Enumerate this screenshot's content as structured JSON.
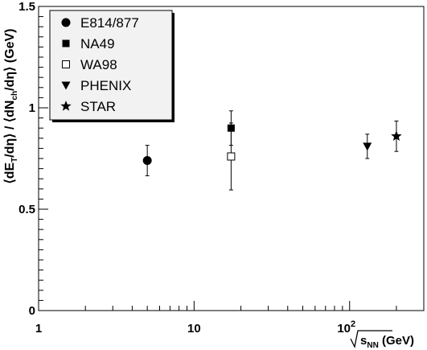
{
  "chart_data": {
    "type": "scatter",
    "title": "",
    "xlabel": "√s_NN (GeV)",
    "ylabel": "⟨dE_T/dη⟩ / ⟨dN_ch/dη⟩ (GeV)",
    "x_scale": "log",
    "xlim": [
      1,
      300
    ],
    "ylim": [
      0,
      1.5
    ],
    "y_ticks": [
      "0",
      "0.5",
      "1",
      "1.5"
    ],
    "x_ticks": [
      {
        "value": 1,
        "label": "1"
      },
      {
        "value": 10,
        "label": "10"
      },
      {
        "value": 100,
        "label": "10",
        "exponent": "2"
      }
    ],
    "grid": false,
    "legend_position": "top-left",
    "series": [
      {
        "name": "E814/877",
        "marker": "filled-circle",
        "points": [
          {
            "x": 5,
            "y": 0.74,
            "yerr": 0.075
          }
        ]
      },
      {
        "name": "NA49",
        "marker": "filled-square",
        "points": [
          {
            "x": 17.3,
            "y": 0.9,
            "yerr": 0.085
          }
        ]
      },
      {
        "name": "WA98",
        "marker": "open-square",
        "points": [
          {
            "x": 17.3,
            "y": 0.76,
            "yerr": 0.165
          }
        ]
      },
      {
        "name": "PHENIX",
        "marker": "filled-triangle-down",
        "points": [
          {
            "x": 130,
            "y": 0.81,
            "yerr": 0.06
          }
        ]
      },
      {
        "name": "STAR",
        "marker": "filled-star",
        "points": [
          {
            "x": 200,
            "y": 0.86,
            "yerr": 0.075
          }
        ]
      }
    ]
  }
}
